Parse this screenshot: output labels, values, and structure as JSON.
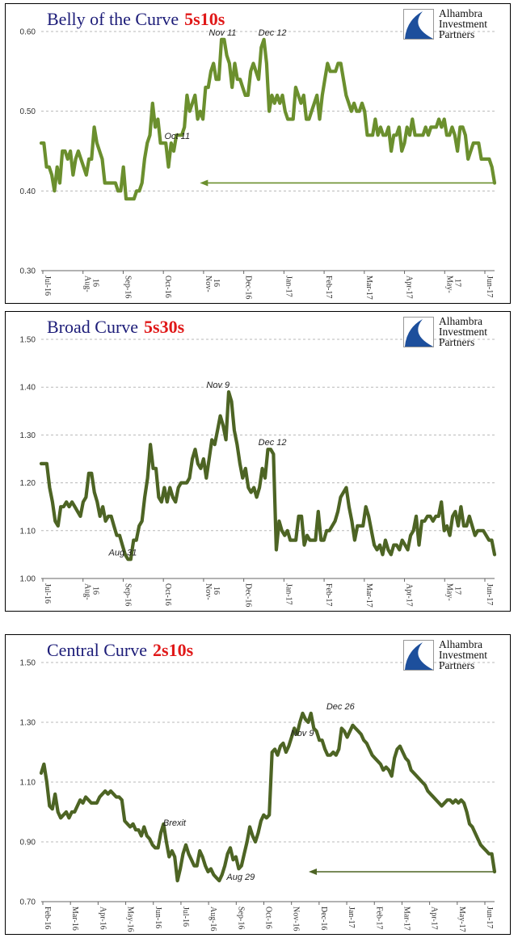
{
  "chart_data": [
    {
      "type": "line",
      "title": "Belly of the Curve",
      "title_accent": "5s10s",
      "logo": [
        "Alhambra",
        "Investment",
        "Partners"
      ],
      "color": "#6b8f2e",
      "ylim": [
        0.3,
        0.6
      ],
      "ytick_labels": [
        "0.60",
        "0.50",
        "0.40",
        "0.30"
      ],
      "yticks": [
        0.6,
        0.5,
        0.4,
        0.3
      ],
      "xtick_labels": [
        "Jul-16",
        "Aug-16",
        "Sep-16",
        "Oct-16",
        "Nov-16",
        "Dec-16",
        "Jan-17",
        "Feb-17",
        "Mar-17",
        "Apr-17",
        "May-17",
        "Jun-17"
      ],
      "annotations": [
        {
          "text": "Nov 11",
          "x": 0.4,
          "y": 0.59
        },
        {
          "text": "Dec 12",
          "x": 0.51,
          "y": 0.59
        },
        {
          "text": "Oct 11",
          "x": 0.3,
          "y": 0.46
        }
      ],
      "arrow": {
        "from": [
          1.0,
          0.41
        ],
        "to": [
          0.35,
          0.41
        ]
      },
      "series": [
        {
          "values": [
            0.46,
            0.46,
            0.43,
            0.43,
            0.42,
            0.4,
            0.43,
            0.41,
            0.45,
            0.45,
            0.44,
            0.45,
            0.42,
            0.44,
            0.45,
            0.44,
            0.43,
            0.42,
            0.44,
            0.44,
            0.48,
            0.46,
            0.45,
            0.44,
            0.41,
            0.41,
            0.41,
            0.41,
            0.41,
            0.4,
            0.4,
            0.43,
            0.39,
            0.39,
            0.39,
            0.39,
            0.4,
            0.4,
            0.41,
            0.44,
            0.46,
            0.47,
            0.51,
            0.48,
            0.49,
            0.46,
            0.46,
            0.46,
            0.43,
            0.46,
            0.45,
            0.47,
            0.47,
            0.47,
            0.48,
            0.52,
            0.5,
            0.51,
            0.52,
            0.49,
            0.5,
            0.49,
            0.53,
            0.53,
            0.55,
            0.56,
            0.54,
            0.54,
            0.59,
            0.59,
            0.57,
            0.56,
            0.53,
            0.56,
            0.54,
            0.54,
            0.53,
            0.52,
            0.52,
            0.55,
            0.56,
            0.55,
            0.54,
            0.58,
            0.59,
            0.56,
            0.5,
            0.52,
            0.51,
            0.52,
            0.51,
            0.52,
            0.5,
            0.49,
            0.49,
            0.49,
            0.53,
            0.52,
            0.51,
            0.52,
            0.49,
            0.49,
            0.5,
            0.51,
            0.52,
            0.49,
            0.52,
            0.54,
            0.56,
            0.55,
            0.55,
            0.55,
            0.56,
            0.56,
            0.54,
            0.52,
            0.51,
            0.5,
            0.51,
            0.5,
            0.5,
            0.51,
            0.5,
            0.47,
            0.47,
            0.47,
            0.49,
            0.47,
            0.48,
            0.47,
            0.47,
            0.48,
            0.45,
            0.47,
            0.47,
            0.48,
            0.45,
            0.46,
            0.48,
            0.47,
            0.49,
            0.47,
            0.47,
            0.47,
            0.47,
            0.48,
            0.47,
            0.48,
            0.48,
            0.48,
            0.49,
            0.48,
            0.49,
            0.47,
            0.47,
            0.48,
            0.47,
            0.45,
            0.48,
            0.48,
            0.47,
            0.44,
            0.45,
            0.46,
            0.46,
            0.46,
            0.44,
            0.44,
            0.44,
            0.44,
            0.43,
            0.41
          ]
        }
      ]
    },
    {
      "type": "line",
      "title": "Broad Curve",
      "title_accent": "5s30s",
      "logo": [
        "Alhambra",
        "Investment",
        "Partners"
      ],
      "color": "#4d6424",
      "ylim": [
        1.0,
        1.5
      ],
      "ytick_labels": [
        "1.50",
        "1.40",
        "1.30",
        "1.20",
        "1.10",
        "1.00"
      ],
      "yticks": [
        1.5,
        1.4,
        1.3,
        1.2,
        1.1,
        1.0
      ],
      "xtick_labels": [
        "Jul-16",
        "Aug-16",
        "Sep-16",
        "Oct-16",
        "Nov-16",
        "Dec-16",
        "Jan-17",
        "Feb-17",
        "Mar-17",
        "Apr-17",
        "May-17",
        "Jun-17"
      ],
      "annotations": [
        {
          "text": "Nov 9",
          "x": 0.39,
          "y": 1.39
        },
        {
          "text": "Dec 12",
          "x": 0.51,
          "y": 1.27
        },
        {
          "text": "Aug 31",
          "x": 0.18,
          "y": 1.04
        }
      ],
      "series": [
        {
          "values": [
            1.24,
            1.24,
            1.24,
            1.19,
            1.16,
            1.12,
            1.11,
            1.15,
            1.15,
            1.16,
            1.15,
            1.16,
            1.15,
            1.14,
            1.13,
            1.16,
            1.17,
            1.22,
            1.22,
            1.18,
            1.16,
            1.13,
            1.15,
            1.12,
            1.13,
            1.13,
            1.11,
            1.09,
            1.09,
            1.07,
            1.05,
            1.04,
            1.04,
            1.08,
            1.08,
            1.11,
            1.12,
            1.17,
            1.21,
            1.28,
            1.23,
            1.23,
            1.17,
            1.16,
            1.19,
            1.16,
            1.19,
            1.17,
            1.16,
            1.19,
            1.2,
            1.2,
            1.2,
            1.21,
            1.25,
            1.27,
            1.24,
            1.23,
            1.25,
            1.21,
            1.25,
            1.29,
            1.28,
            1.31,
            1.34,
            1.32,
            1.29,
            1.39,
            1.37,
            1.31,
            1.28,
            1.24,
            1.21,
            1.23,
            1.19,
            1.18,
            1.19,
            1.17,
            1.19,
            1.23,
            1.21,
            1.27,
            1.27,
            1.26,
            1.06,
            1.12,
            1.1,
            1.09,
            1.1,
            1.08,
            1.08,
            1.08,
            1.13,
            1.13,
            1.07,
            1.09,
            1.08,
            1.08,
            1.08,
            1.14,
            1.08,
            1.08,
            1.1,
            1.1,
            1.11,
            1.12,
            1.14,
            1.17,
            1.18,
            1.19,
            1.15,
            1.12,
            1.08,
            1.11,
            1.11,
            1.11,
            1.15,
            1.13,
            1.1,
            1.07,
            1.06,
            1.07,
            1.05,
            1.08,
            1.06,
            1.05,
            1.07,
            1.07,
            1.06,
            1.08,
            1.07,
            1.06,
            1.09,
            1.1,
            1.13,
            1.07,
            1.12,
            1.12,
            1.13,
            1.13,
            1.12,
            1.13,
            1.13,
            1.16,
            1.1,
            1.11,
            1.09,
            1.13,
            1.14,
            1.11,
            1.15,
            1.11,
            1.11,
            1.13,
            1.11,
            1.09,
            1.1,
            1.1,
            1.1,
            1.09,
            1.08,
            1.08,
            1.05
          ]
        }
      ]
    },
    {
      "type": "line",
      "title": "Central Curve",
      "title_accent": "2s10s",
      "logo": [
        "Alhambra",
        "Investment",
        "Partners"
      ],
      "color": "#4d6424",
      "ylim": [
        0.7,
        1.5
      ],
      "ytick_labels": [
        "1.50",
        "1.30",
        "1.10",
        "0.90",
        "0.70"
      ],
      "yticks": [
        1.5,
        1.3,
        1.1,
        0.9,
        0.7
      ],
      "xtick_labels": [
        "Feb-16",
        "Mar-16",
        "Apr-16",
        "May-16",
        "Jun-16",
        "Jul-16",
        "Aug-16",
        "Sep-16",
        "Oct-16",
        "Nov-16",
        "Dec-16",
        "Jan-17",
        "Feb-17",
        "Mar-17",
        "Apr-17",
        "May-17",
        "Jun-17"
      ],
      "annotations": [
        {
          "text": "Brexit",
          "x": 0.294,
          "y": 0.94
        },
        {
          "text": "Aug 29",
          "x": 0.44,
          "y": 0.76
        },
        {
          "text": "Nov 9",
          "x": 0.576,
          "y": 1.24
        },
        {
          "text": "Dec 26",
          "x": 0.66,
          "y": 1.33
        }
      ],
      "arrow": {
        "from": [
          1.0,
          0.8
        ],
        "to": [
          0.59,
          0.8
        ]
      },
      "series": [
        {
          "values": [
            1.13,
            1.16,
            1.1,
            1.02,
            1.01,
            1.06,
            1.0,
            0.98,
            0.99,
            1.0,
            0.98,
            1.0,
            1.0,
            1.02,
            1.04,
            1.03,
            1.05,
            1.04,
            1.03,
            1.03,
            1.03,
            1.05,
            1.06,
            1.07,
            1.06,
            1.07,
            1.06,
            1.05,
            1.05,
            1.04,
            0.97,
            0.96,
            0.95,
            0.96,
            0.94,
            0.94,
            0.92,
            0.95,
            0.92,
            0.91,
            0.89,
            0.88,
            0.88,
            0.93,
            0.96,
            0.9,
            0.85,
            0.87,
            0.85,
            0.77,
            0.81,
            0.86,
            0.89,
            0.86,
            0.84,
            0.82,
            0.82,
            0.87,
            0.85,
            0.82,
            0.8,
            0.81,
            0.79,
            0.78,
            0.77,
            0.79,
            0.82,
            0.86,
            0.88,
            0.84,
            0.85,
            0.81,
            0.82,
            0.86,
            0.9,
            0.95,
            0.92,
            0.9,
            0.93,
            0.97,
            0.99,
            0.98,
            0.99,
            1.2,
            1.21,
            1.19,
            1.22,
            1.23,
            1.2,
            1.22,
            1.25,
            1.28,
            1.26,
            1.3,
            1.33,
            1.31,
            1.3,
            1.33,
            1.28,
            1.27,
            1.24,
            1.24,
            1.21,
            1.19,
            1.19,
            1.2,
            1.19,
            1.21,
            1.28,
            1.27,
            1.25,
            1.27,
            1.29,
            1.28,
            1.27,
            1.26,
            1.24,
            1.23,
            1.21,
            1.19,
            1.18,
            1.17,
            1.16,
            1.14,
            1.15,
            1.14,
            1.12,
            1.18,
            1.21,
            1.22,
            1.2,
            1.18,
            1.17,
            1.14,
            1.13,
            1.12,
            1.11,
            1.1,
            1.09,
            1.07,
            1.06,
            1.05,
            1.04,
            1.03,
            1.02,
            1.03,
            1.04,
            1.04,
            1.03,
            1.04,
            1.03,
            1.04,
            1.03,
            1.0,
            0.96,
            0.95,
            0.93,
            0.91,
            0.89,
            0.88,
            0.87,
            0.86,
            0.86,
            0.8
          ]
        }
      ]
    }
  ]
}
